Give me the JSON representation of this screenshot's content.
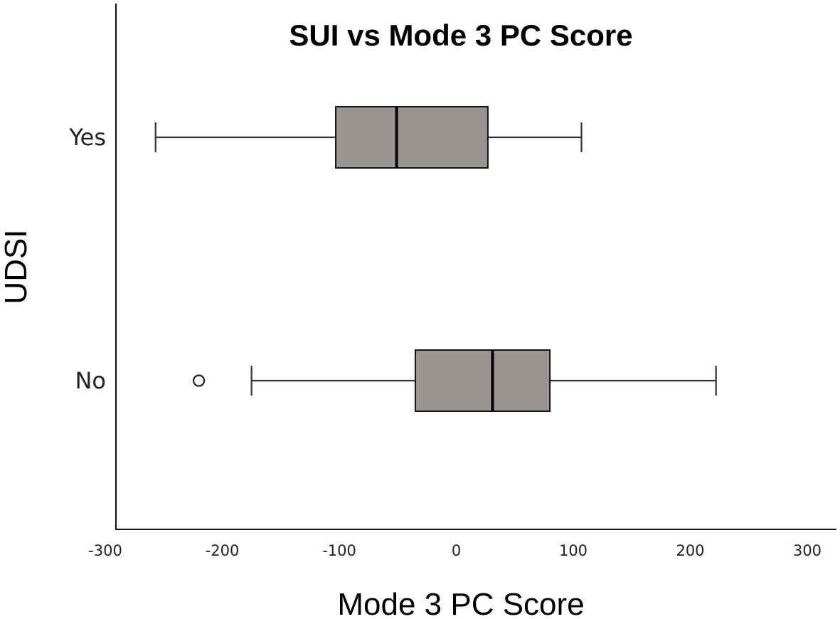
{
  "chart_data": {
    "type": "boxplot",
    "title": "SUI vs Mode 3 PC Score",
    "xlabel": "Mode 3 PC Score",
    "ylabel": "UDSI",
    "xlim": [
      -300,
      300
    ],
    "xticks": [
      -300,
      -200,
      -100,
      0,
      100,
      200,
      300
    ],
    "orientation": "horizontal",
    "grid": false,
    "box_color": "#9a9593",
    "categories": [
      "Yes",
      "No"
    ],
    "boxes": [
      {
        "category": "Yes",
        "whisker_low": -257,
        "q1": -103,
        "median": -51,
        "q3": 27,
        "whisker_high": 107,
        "outliers": []
      },
      {
        "category": "No",
        "whisker_low": -175,
        "q1": -35,
        "median": 31,
        "q3": 80,
        "whisker_high": 222,
        "outliers": [
          -220
        ]
      }
    ]
  }
}
